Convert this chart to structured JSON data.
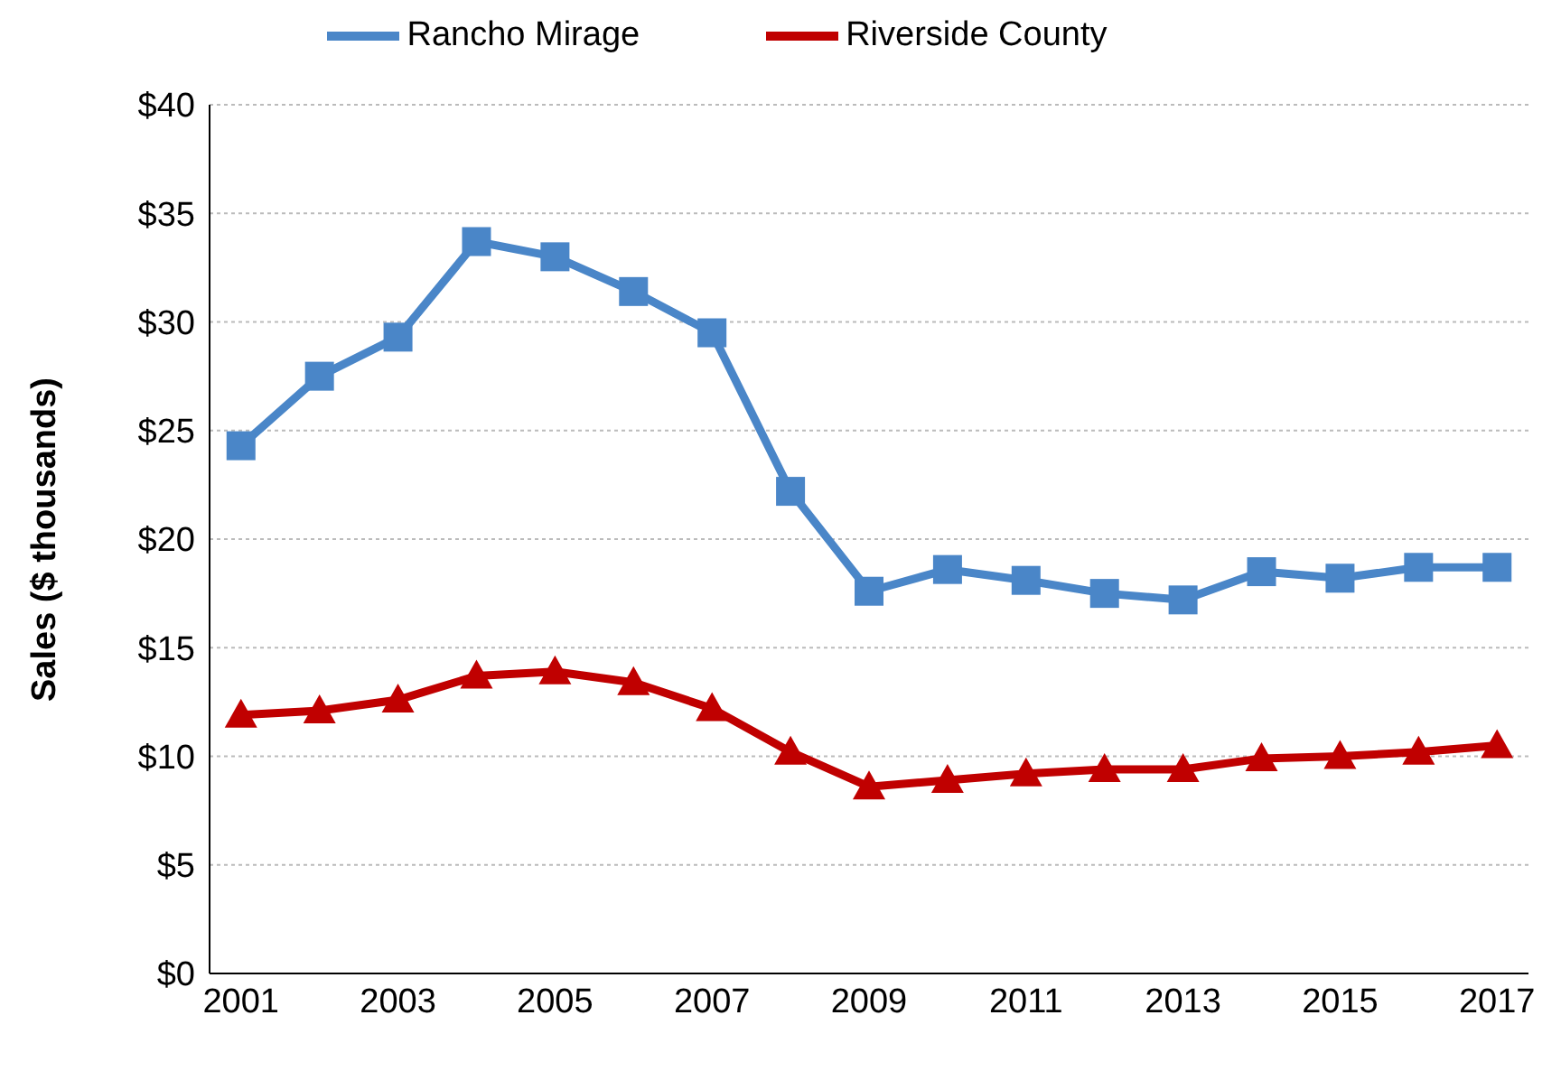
{
  "chart_data": {
    "type": "line",
    "ylabel": "Sales ($ thousands)",
    "x": [
      2001,
      2002,
      2003,
      2004,
      2005,
      2006,
      2007,
      2008,
      2009,
      2010,
      2011,
      2012,
      2013,
      2014,
      2015,
      2016,
      2017
    ],
    "series": [
      {
        "name": "Rancho Mirage",
        "color": "#4a86c8",
        "marker": "square",
        "values": [
          24.3,
          27.5,
          29.3,
          33.7,
          33.0,
          31.4,
          29.5,
          22.2,
          17.6,
          18.6,
          18.1,
          17.5,
          17.2,
          18.5,
          18.2,
          18.7,
          18.7
        ]
      },
      {
        "name": "Riverside County",
        "color": "#c00000",
        "marker": "triangle",
        "values": [
          11.9,
          12.1,
          12.6,
          13.7,
          13.9,
          13.4,
          12.2,
          10.2,
          8.6,
          8.9,
          9.2,
          9.4,
          9.4,
          9.9,
          10.0,
          10.2,
          10.5
        ]
      }
    ],
    "xlim": [
      2000.6,
      2017.4
    ],
    "xticks": [
      2001,
      2003,
      2005,
      2007,
      2009,
      2011,
      2013,
      2015,
      2017
    ],
    "ylim": [
      0,
      40
    ],
    "yticks": [
      {
        "value": 0,
        "label": "$0"
      },
      {
        "value": 5,
        "label": "$5"
      },
      {
        "value": 10,
        "label": "$10"
      },
      {
        "value": 15,
        "label": "$15"
      },
      {
        "value": 20,
        "label": "$20"
      },
      {
        "value": 25,
        "label": "$25"
      },
      {
        "value": 30,
        "label": "$30"
      },
      {
        "value": 35,
        "label": "$35"
      },
      {
        "value": 40,
        "label": "$40"
      }
    ],
    "grid": "y",
    "legend": "top",
    "line_style": "solid"
  }
}
